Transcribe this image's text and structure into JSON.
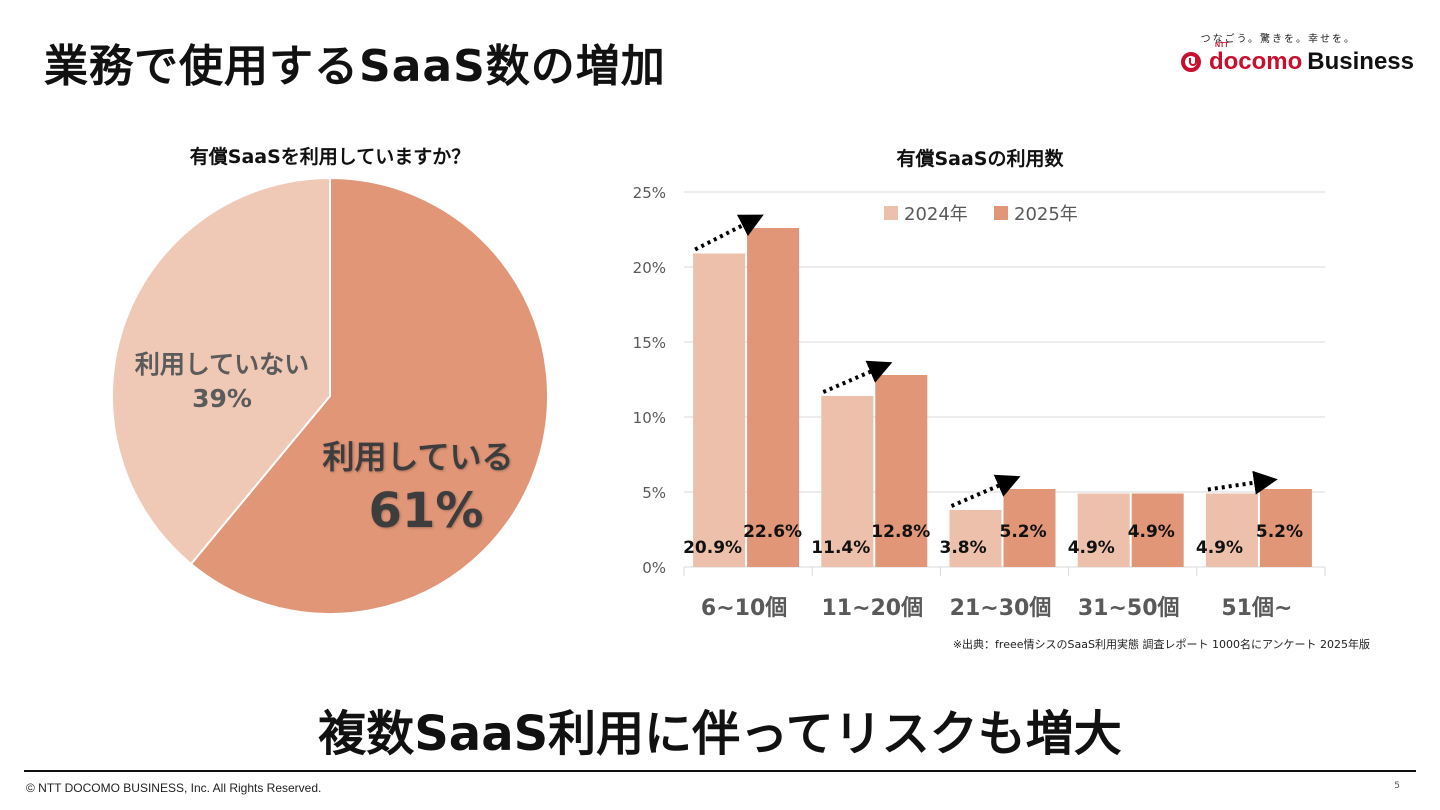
{
  "header": {
    "title": "業務で使用するSaaS数の増加",
    "logo_tagline": "つなごう。驚きを。幸せを。",
    "logo_ntt": "NTT",
    "logo_docomo": "docomo",
    "logo_business": "Business"
  },
  "colors": {
    "light": "#ecc0ab",
    "dark": "#e09677",
    "brand_red": "#c8102e"
  },
  "chart_data": [
    {
      "type": "pie",
      "title": "有償SaaSを利用していますか？",
      "slices": [
        {
          "label": "利用している",
          "value": 61,
          "value_label": "61%"
        },
        {
          "label": "利用していない",
          "value": 39,
          "value_label": "39%"
        }
      ]
    },
    {
      "type": "bar",
      "title": "有償SaaSの利用数",
      "categories": [
        "6~10個",
        "11~20個",
        "21~30個",
        "31~50個",
        "51個~"
      ],
      "series": [
        {
          "name": "2024年",
          "values": [
            20.9,
            11.4,
            3.8,
            4.9,
            4.9
          ],
          "labels": [
            "20.9%",
            "11.4%",
            "3.8%",
            "4.9%",
            "4.9%"
          ]
        },
        {
          "name": "2025年",
          "values": [
            22.6,
            12.8,
            5.2,
            4.9,
            5.2
          ],
          "labels": [
            "22.6%",
            "12.8%",
            "5.2%",
            "4.9%",
            "5.2%"
          ]
        }
      ],
      "ylim": [
        0,
        25
      ],
      "yticks": [
        "0%",
        "5%",
        "10%",
        "15%",
        "20%",
        "25%"
      ],
      "yticks_values": [
        0,
        5,
        10,
        15,
        20,
        25
      ],
      "grid": true,
      "legend": "top-right",
      "annotations": "dotted arrows indicating increase on 6~10個, 11~20個, 21~30個, 51個~",
      "arrow_categories": [
        0,
        1,
        2,
        4
      ]
    }
  ],
  "source_note": "※出典：freee情シスのSaaS利用実態 調査レポート 1000名にアンケート 2025年版",
  "headline": "複数SaaS利用に伴ってリスクも増大",
  "footer": {
    "copyright": "© NTT DOCOMO BUSINESS, Inc. All Rights Reserved.",
    "page": "5"
  }
}
